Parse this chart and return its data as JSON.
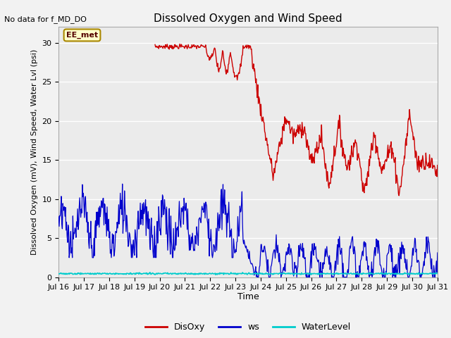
{
  "title": "Dissolved Oxygen and Wind Speed",
  "ylabel": "Dissolved Oxygen (mV), Wind Speed, Water Lvl (psi)",
  "xlabel": "Time",
  "no_data_text": "No data for f_MD_DO",
  "annotation_text": "EE_met",
  "ylim": [
    0,
    32
  ],
  "yticks": [
    0,
    5,
    10,
    15,
    20,
    25,
    30
  ],
  "xtick_labels": [
    "Jul 16",
    "Jul 17",
    "Jul 18",
    "Jul 19",
    "Jul 20",
    "Jul 21",
    "Jul 22",
    "Jul 23",
    "Jul 24",
    "Jul 25",
    "Jul 26",
    "Jul 27",
    "Jul 28",
    "Jul 29",
    "Jul 30",
    "Jul 31"
  ],
  "legend_labels": [
    "DisOxy",
    "ws",
    "WaterLevel"
  ],
  "legend_colors": [
    "#cc0000",
    "#0000cc",
    "#00cccc"
  ],
  "disoxy_color": "#cc0000",
  "ws_color": "#0000cc",
  "waterlevel_color": "#00cccc",
  "bg_color": "#ebebeb",
  "title_fontsize": 11,
  "axis_fontsize": 8,
  "tick_fontsize": 8
}
